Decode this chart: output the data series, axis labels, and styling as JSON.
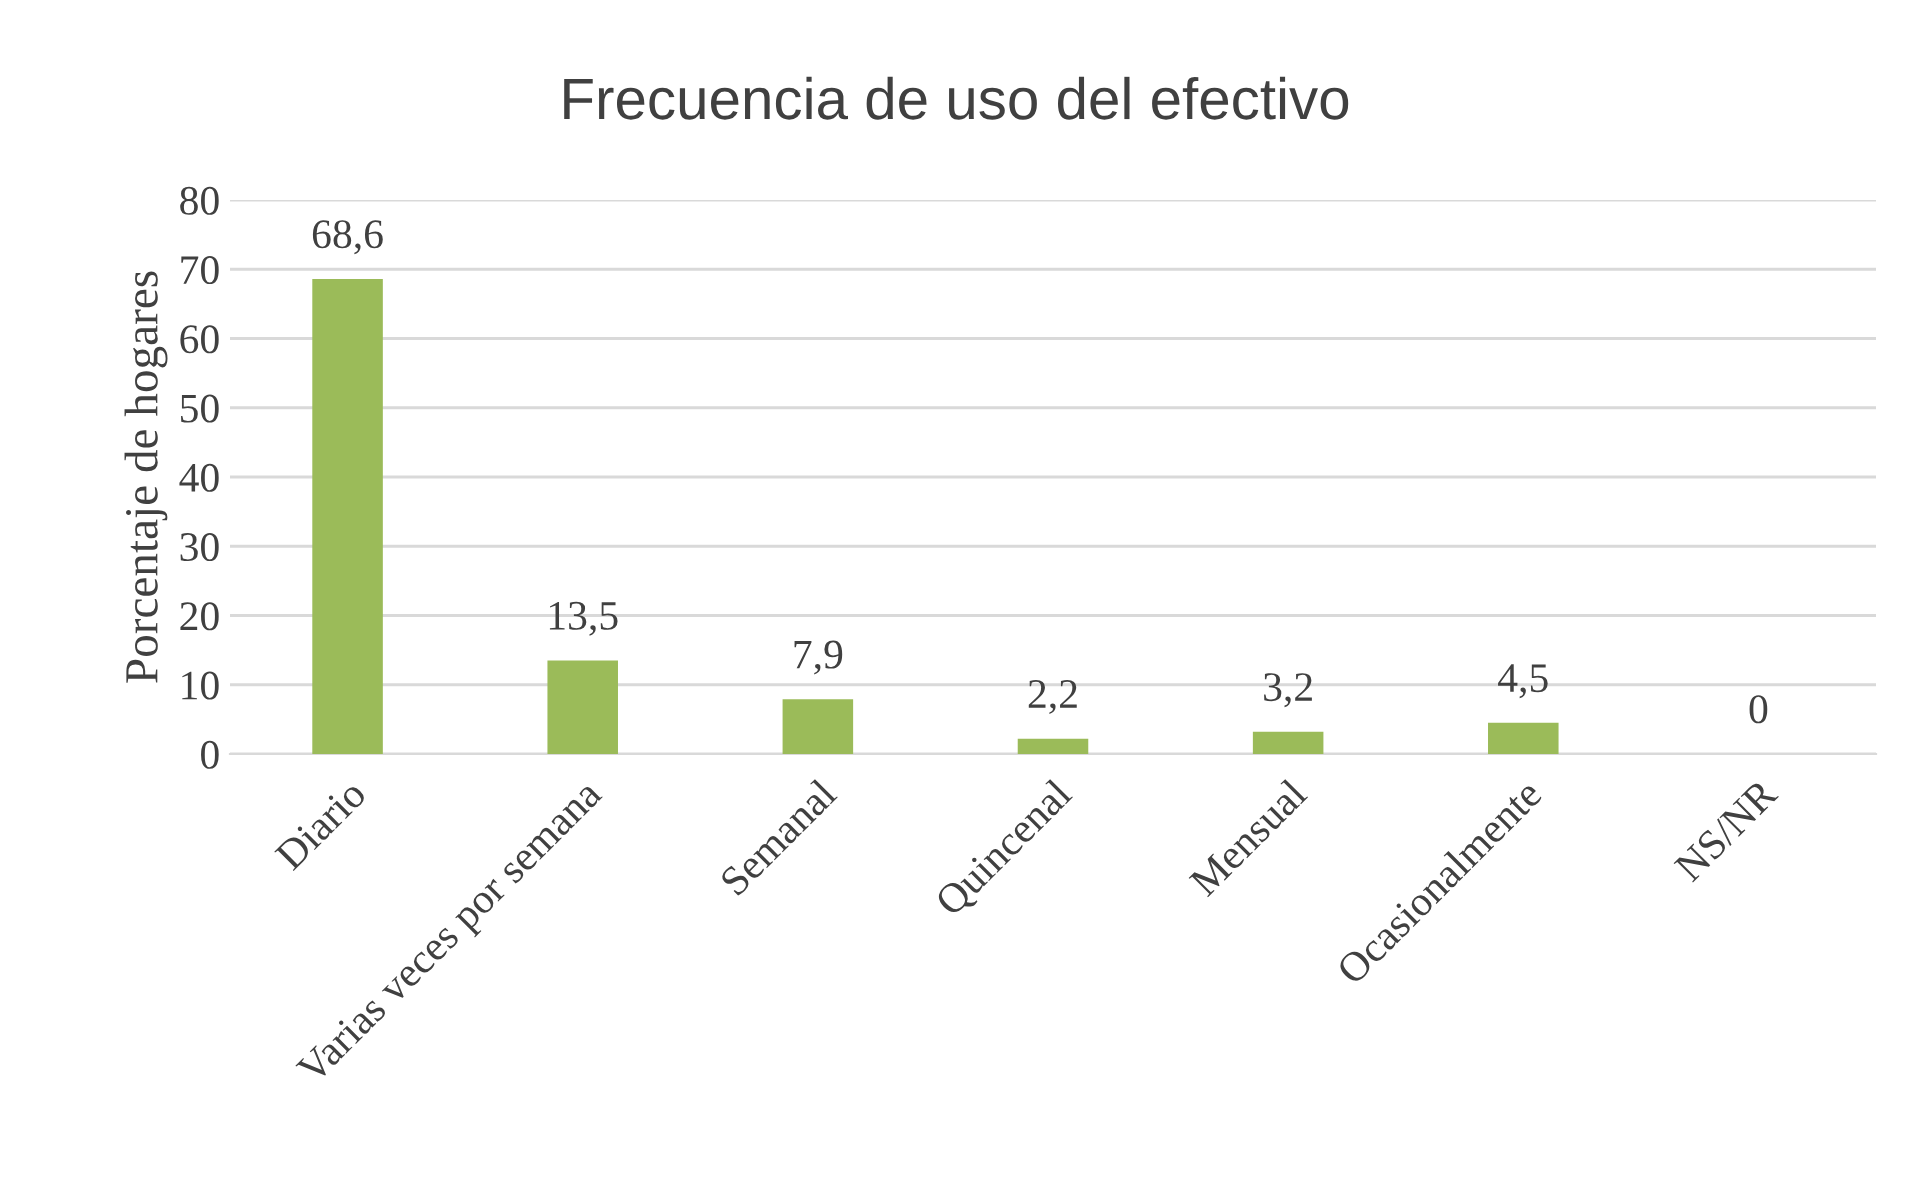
{
  "chart_data": {
    "type": "bar",
    "title": "Frecuencia de uso del efectivo",
    "ylabel": "Porcentaje de hogares",
    "categories": [
      "Diario",
      "Varias veces por semana",
      "Semanal",
      "Quincenal",
      "Mensual",
      "Ocasionalmente",
      "NS/NR"
    ],
    "values": [
      68.6,
      13.5,
      7.9,
      2.2,
      3.2,
      4.5,
      0
    ],
    "value_labels": [
      "68,6",
      "13,5",
      "7,9",
      "2,2",
      "3,2",
      "4,5",
      "0"
    ],
    "color": "#9bbb59",
    "ylim": [
      0,
      80
    ],
    "yticks": [
      0,
      10,
      20,
      30,
      40,
      50,
      60,
      70,
      80
    ],
    "grid": "y",
    "legend": false
  }
}
